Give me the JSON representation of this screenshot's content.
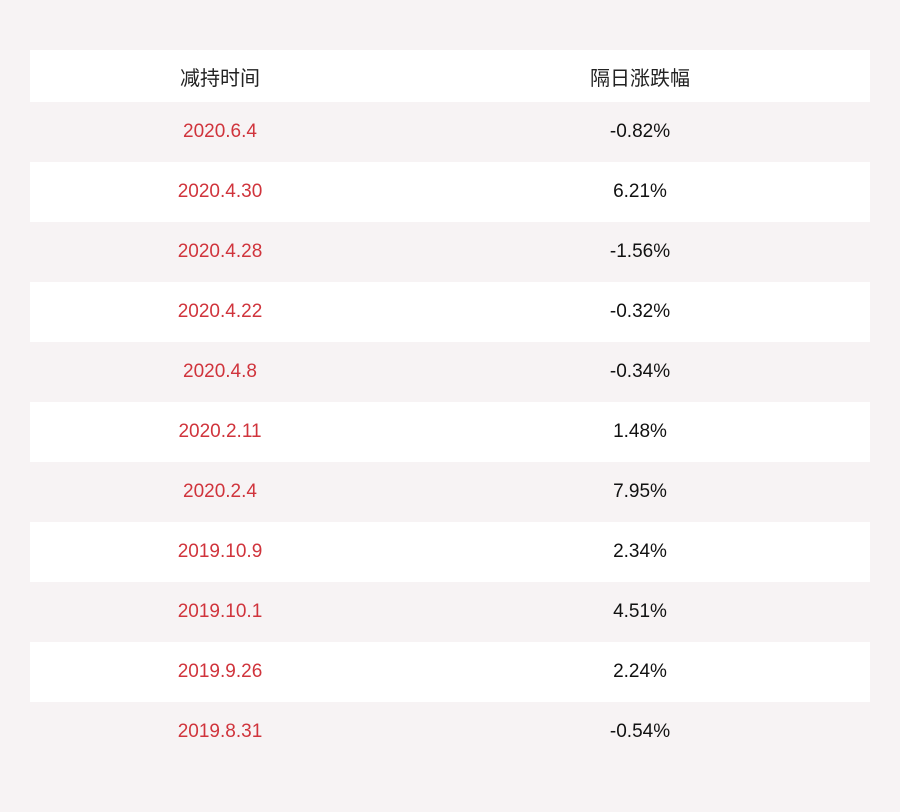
{
  "header": {
    "col_date": "减持时间",
    "col_change": "隔日涨跌幅"
  },
  "rows": [
    {
      "date": "2020.6.4",
      "change": "-0.82%"
    },
    {
      "date": "2020.4.30",
      "change": "6.21%"
    },
    {
      "date": "2020.4.28",
      "change": "-1.56%"
    },
    {
      "date": "2020.4.22",
      "change": "-0.32%"
    },
    {
      "date": "2020.4.8",
      "change": "-0.34%"
    },
    {
      "date": "2020.2.11",
      "change": "1.48%"
    },
    {
      "date": "2020.2.4",
      "change": "7.95%"
    },
    {
      "date": "2019.10.9",
      "change": "2.34%"
    },
    {
      "date": "2019.10.1",
      "change": "4.51%"
    },
    {
      "date": "2019.9.26",
      "change": "2.24%"
    },
    {
      "date": "2019.8.31",
      "change": "-0.54%"
    }
  ],
  "colors": {
    "page_background": "#f7f3f4",
    "stripe_background": "#ffffff",
    "date_text": "#d0343c",
    "value_text": "#111111"
  }
}
